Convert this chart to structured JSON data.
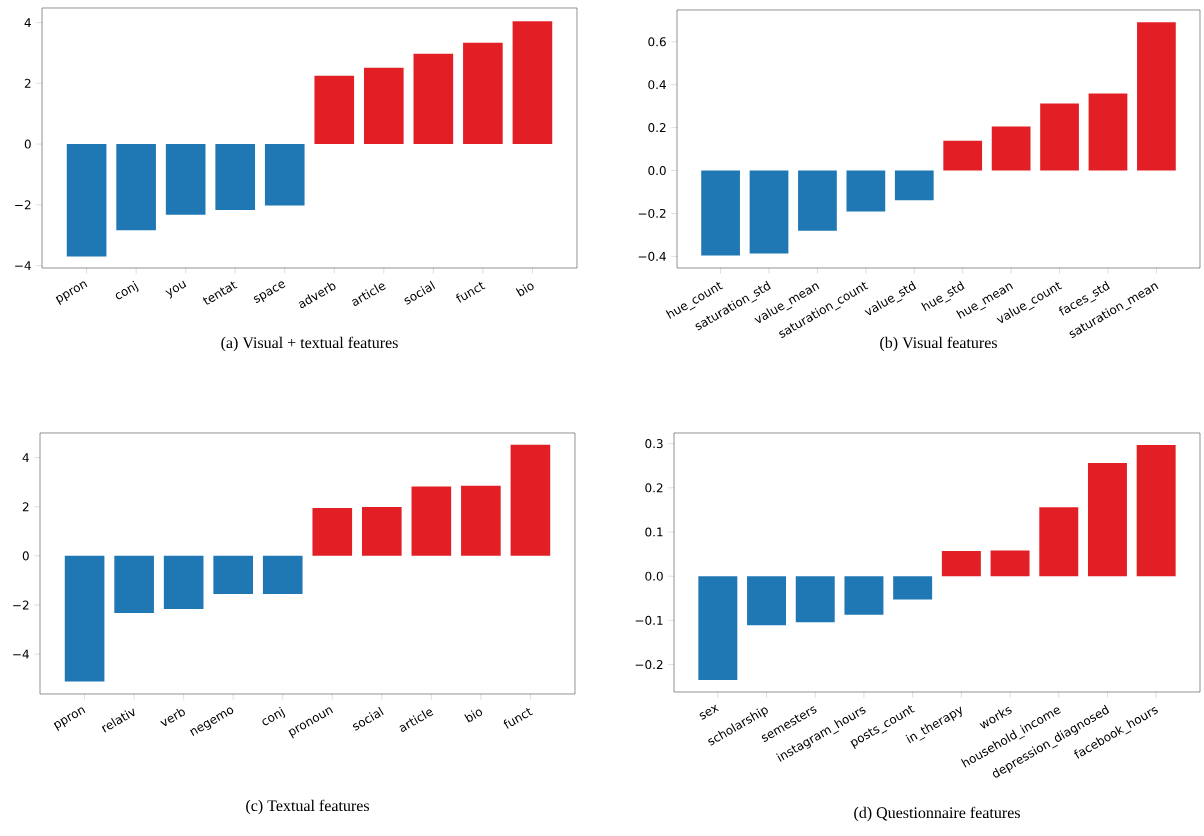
{
  "chart_data": [
    {
      "type": "bar",
      "title": "(a) Visual + textual features",
      "categories": [
        "ppron",
        "conj",
        "you",
        "tentat",
        "space",
        "adverb",
        "article",
        "social",
        "funct",
        "bio"
      ],
      "values": [
        -3.7,
        -2.84,
        -2.33,
        -2.17,
        -2.02,
        2.25,
        2.51,
        2.97,
        3.34,
        4.04
      ],
      "colors": [
        "#1f77b4",
        "#1f77b4",
        "#1f77b4",
        "#1f77b4",
        "#1f77b4",
        "#e31f26",
        "#e31f26",
        "#e31f26",
        "#e31f26",
        "#e31f26"
      ],
      "ylim": [
        -4.08,
        4.48
      ],
      "yticks": [
        {
          "value": -4,
          "label": "−4"
        },
        {
          "value": -2,
          "label": "−2"
        },
        0,
        2,
        4
      ]
    },
    {
      "type": "bar",
      "title": "(b) Visual features",
      "categories": [
        "hue_count",
        "saturation_std",
        "value_mean",
        "saturation_count",
        "value_std",
        "hue_std",
        "hue_mean",
        "value_count",
        "faces_std",
        "saturation_mean"
      ],
      "values": [
        -0.396,
        -0.386,
        -0.28,
        -0.191,
        -0.138,
        0.139,
        0.205,
        0.312,
        0.359,
        0.691
      ],
      "colors": [
        "#1f77b4",
        "#1f77b4",
        "#1f77b4",
        "#1f77b4",
        "#1f77b4",
        "#e31f26",
        "#e31f26",
        "#e31f26",
        "#e31f26",
        "#e31f26"
      ],
      "ylim": [
        -0.454,
        0.748
      ],
      "yticks": [
        {
          "value": -0.4,
          "label": "−0.4"
        },
        {
          "value": -0.2,
          "label": "−0.2"
        },
        {
          "value": 0,
          "label": "0.0"
        },
        0.2,
        0.4,
        0.6
      ]
    },
    {
      "type": "bar",
      "title": "(c) Textual features",
      "categories": [
        "ppron",
        "relativ",
        "verb",
        "negemo",
        "conj",
        "pronoun",
        "social",
        "article",
        "bio",
        "funct"
      ],
      "values": [
        -5.11,
        -2.32,
        -2.16,
        -1.55,
        -1.55,
        1.95,
        1.99,
        2.82,
        2.85,
        4.52
      ],
      "colors": [
        "#1f77b4",
        "#1f77b4",
        "#1f77b4",
        "#1f77b4",
        "#1f77b4",
        "#e31f26",
        "#e31f26",
        "#e31f26",
        "#e31f26",
        "#e31f26"
      ],
      "ylim": [
        -5.62,
        5.0
      ],
      "yticks": [
        {
          "value": -4,
          "label": "−4"
        },
        {
          "value": -2,
          "label": "−2"
        },
        0,
        2,
        4
      ]
    },
    {
      "type": "bar",
      "title": "(d) Questionnaire features",
      "categories": [
        "sex",
        "scholarship",
        "semesters",
        "instagram_hours",
        "posts_count",
        "in_therapy",
        "works",
        "household_income",
        "depression_diagnosed",
        "facebook_hours"
      ],
      "values": [
        -0.235,
        -0.111,
        -0.104,
        -0.087,
        -0.053,
        0.057,
        0.058,
        0.156,
        0.256,
        0.297
      ],
      "colors": [
        "#1f77b4",
        "#1f77b4",
        "#1f77b4",
        "#1f77b4",
        "#1f77b4",
        "#e31f26",
        "#e31f26",
        "#e31f26",
        "#e31f26",
        "#e31f26"
      ],
      "ylim": [
        -0.262,
        0.324
      ],
      "yticks": [
        {
          "value": -0.2,
          "label": "−0.2"
        },
        {
          "value": -0.1,
          "label": "−0.1"
        },
        {
          "value": 0,
          "label": "0.0"
        },
        0.1,
        0.2,
        0.3
      ]
    }
  ]
}
